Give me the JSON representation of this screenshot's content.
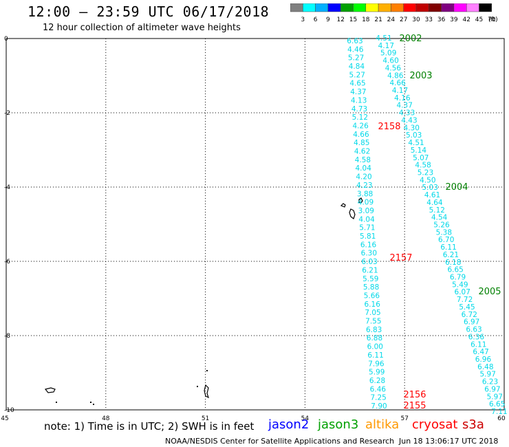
{
  "header": {
    "title": "12:00 – 23:59 UTC 06/17/2018",
    "subtitle": "12 hour collection of altimeter wave heights"
  },
  "legend": {
    "colors": [
      "#808080",
      "#00ffff",
      "#00b0ff",
      "#0000ff",
      "#00a000",
      "#00ff00",
      "#ffff00",
      "#ffb000",
      "#ff8000",
      "#ff0000",
      "#c00000",
      "#800000",
      "#800080",
      "#ff00ff",
      "#ff80ff",
      "#000000"
    ],
    "labels": [
      "3",
      "6",
      "9",
      "12",
      "15",
      "18",
      "21",
      "24",
      "27",
      "30",
      "33",
      "36",
      "39",
      "42",
      "45",
      "70",
      "(ft)"
    ]
  },
  "axes": {
    "x_ticks": [
      "45",
      "48",
      "51",
      "54",
      "57",
      "60"
    ],
    "y_ticks": [
      "0",
      "-2",
      "-4",
      "-6",
      "-8",
      "-10"
    ]
  },
  "tracks": {
    "color": "#00d8e8",
    "track1": [
      "6.63",
      "4.46",
      "5.27",
      "4.84",
      "5.27",
      "4.65",
      "4.37",
      "4.13",
      "4.73",
      "5.12",
      "4.26",
      "4.66",
      "4.85",
      "4.62",
      "4.58",
      "4.04",
      "4.20",
      "4.23",
      "3.88",
      "4.09",
      "3.09",
      "4.04",
      "5.71",
      "5.81",
      "6.16",
      "6.30",
      "6.03",
      "6.21",
      "5.59",
      "5.88",
      "5.66",
      "6.16",
      "7.05",
      "7.55",
      "6.83",
      "6.88",
      "6.00",
      "6.11",
      "7.96",
      "5.99",
      "6.28",
      "6.46",
      "7.25",
      "7.90"
    ],
    "track2": [
      "4.51",
      "4.17",
      "5.09",
      "4.60",
      "4.56",
      "4.86",
      "4.66",
      "4.17",
      "4.16",
      "4.37",
      "4.33",
      "4.43",
      "4.30",
      "5.03",
      "4.51",
      "5.14",
      "5.07",
      "4.58",
      "5.23",
      "4.50",
      "5.03",
      "4.61",
      "4.64",
      "5.12",
      "4.54",
      "5.26",
      "5.38",
      "6.70",
      "6.11",
      "6.21",
      "6.18",
      "6.65",
      "6.79",
      "5.49",
      "6.07",
      "7.72",
      "5.45",
      "6.72",
      "6.97",
      "6.63",
      "6.36",
      "6.11",
      "6.47",
      "6.96",
      "6.48",
      "5.97",
      "6.23",
      "6.97",
      "5.97",
      "6.65",
      "7.11"
    ]
  },
  "time_labels": [
    {
      "text": "2002",
      "color": "#008000"
    },
    {
      "text": "2003",
      "color": "#008000"
    },
    {
      "text": "2004",
      "color": "#008000"
    },
    {
      "text": "2005",
      "color": "#008000"
    },
    {
      "text": "2158",
      "color": "#ff0000"
    },
    {
      "text": "2157",
      "color": "#ff0000"
    },
    {
      "text": "2156",
      "color": "#ff0000"
    },
    {
      "text": "2155",
      "color": "#ff0000"
    }
  ],
  "footer": {
    "note": "note: 1) Time is in UTC; 2) SWH is in feet",
    "satellites": [
      {
        "name": "jason2",
        "color": "#0000ff"
      },
      {
        "name": "jason3",
        "color": "#00a000"
      },
      {
        "name": "altika",
        "color": "#ff9900"
      },
      {
        "name": "cryosat",
        "color": "#ff0000"
      },
      {
        "name": "s3a",
        "color": "#cc0000"
      }
    ],
    "credit": "NOAA/NESDIS Center for Satellite Applications and Research",
    "timestamp": "Jun 18 13:06:17 UTC 2018"
  }
}
